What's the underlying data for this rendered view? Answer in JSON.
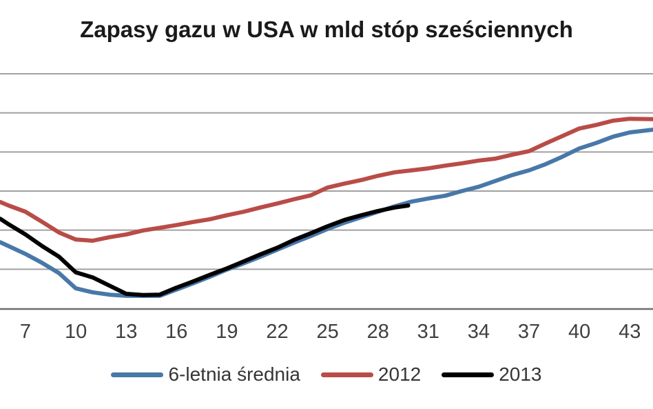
{
  "title": "Zapasy gazu w USA w mld stóp sześciennych",
  "colors": {
    "background": "#ffffff",
    "gridline": "#a0a0a0",
    "axis_line": "#6e6e6e",
    "tick_label": "#3f3f3f",
    "legend_label": "#353535",
    "title_text": "#1a1a1a"
  },
  "chart_data": {
    "type": "line",
    "title": "Zapasy gazu w USA w mld stóp sześciennych",
    "xlabel": "",
    "ylabel": "",
    "x_ticks": [
      7,
      10,
      13,
      16,
      19,
      22,
      25,
      28,
      31,
      34,
      37,
      40,
      43
    ],
    "x_visible_range": [
      5.5,
      44.4
    ],
    "y_axis_labels_visible": false,
    "y_unit": "horizontal gridline intervals above the x-axis (0 = x-axis line, 6 = top gridline; numeric y scale is cropped out of the image)",
    "ylim": [
      0,
      6
    ],
    "grid": true,
    "legend_position": "bottom",
    "series": [
      {
        "name": "6-letnia średnia",
        "color": "#4878a8",
        "points": [
          [
            5.5,
            1.69
          ],
          [
            6,
            1.59
          ],
          [
            7,
            1.39
          ],
          [
            8,
            1.16
          ],
          [
            9,
            0.9
          ],
          [
            10,
            0.51
          ],
          [
            11,
            0.41
          ],
          [
            12,
            0.35
          ],
          [
            13,
            0.32
          ],
          [
            14,
            0.32
          ],
          [
            15,
            0.32
          ],
          [
            16,
            0.48
          ],
          [
            17,
            0.64
          ],
          [
            18,
            0.81
          ],
          [
            19,
            0.99
          ],
          [
            20,
            1.15
          ],
          [
            21,
            1.32
          ],
          [
            22,
            1.5
          ],
          [
            23,
            1.68
          ],
          [
            24,
            1.85
          ],
          [
            25,
            2.03
          ],
          [
            26,
            2.19
          ],
          [
            27,
            2.33
          ],
          [
            28,
            2.47
          ],
          [
            29,
            2.61
          ],
          [
            30,
            2.73
          ],
          [
            31,
            2.81
          ],
          [
            32,
            2.88
          ],
          [
            33,
            3.0
          ],
          [
            34,
            3.11
          ],
          [
            35,
            3.26
          ],
          [
            36,
            3.41
          ],
          [
            37,
            3.53
          ],
          [
            38,
            3.69
          ],
          [
            39,
            3.88
          ],
          [
            40,
            4.09
          ],
          [
            41,
            4.23
          ],
          [
            42,
            4.39
          ],
          [
            43,
            4.5
          ],
          [
            44.4,
            4.57
          ]
        ]
      },
      {
        "name": "2012",
        "color": "#b94c47",
        "points": [
          [
            5.5,
            2.72
          ],
          [
            6,
            2.63
          ],
          [
            7,
            2.47
          ],
          [
            8,
            2.21
          ],
          [
            9,
            1.94
          ],
          [
            10,
            1.76
          ],
          [
            11,
            1.73
          ],
          [
            12,
            1.82
          ],
          [
            13,
            1.89
          ],
          [
            14,
            1.99
          ],
          [
            15,
            2.06
          ],
          [
            16,
            2.13
          ],
          [
            17,
            2.21
          ],
          [
            18,
            2.28
          ],
          [
            19,
            2.38
          ],
          [
            20,
            2.47
          ],
          [
            21,
            2.58
          ],
          [
            22,
            2.68
          ],
          [
            23,
            2.79
          ],
          [
            24,
            2.89
          ],
          [
            25,
            3.09
          ],
          [
            26,
            3.19
          ],
          [
            27,
            3.28
          ],
          [
            28,
            3.39
          ],
          [
            29,
            3.48
          ],
          [
            30,
            3.53
          ],
          [
            31,
            3.58
          ],
          [
            32,
            3.65
          ],
          [
            33,
            3.71
          ],
          [
            34,
            3.78
          ],
          [
            35,
            3.83
          ],
          [
            36,
            3.93
          ],
          [
            37,
            4.02
          ],
          [
            38,
            4.22
          ],
          [
            39,
            4.41
          ],
          [
            40,
            4.6
          ],
          [
            41,
            4.69
          ],
          [
            42,
            4.8
          ],
          [
            43,
            4.85
          ],
          [
            44.4,
            4.84
          ]
        ]
      },
      {
        "name": "2013",
        "color": "#000000",
        "points": [
          [
            5.5,
            2.29
          ],
          [
            6,
            2.15
          ],
          [
            7,
            1.89
          ],
          [
            8,
            1.59
          ],
          [
            9,
            1.32
          ],
          [
            10,
            0.92
          ],
          [
            11,
            0.79
          ],
          [
            12,
            0.58
          ],
          [
            13,
            0.37
          ],
          [
            14,
            0.34
          ],
          [
            15,
            0.35
          ],
          [
            16,
            0.53
          ],
          [
            17,
            0.69
          ],
          [
            18,
            0.86
          ],
          [
            19,
            1.02
          ],
          [
            20,
            1.2
          ],
          [
            21,
            1.38
          ],
          [
            22,
            1.55
          ],
          [
            23,
            1.75
          ],
          [
            24,
            1.92
          ],
          [
            25,
            2.1
          ],
          [
            26,
            2.26
          ],
          [
            27,
            2.38
          ],
          [
            28,
            2.49
          ],
          [
            29,
            2.58
          ],
          [
            29.8,
            2.63
          ]
        ]
      }
    ]
  }
}
